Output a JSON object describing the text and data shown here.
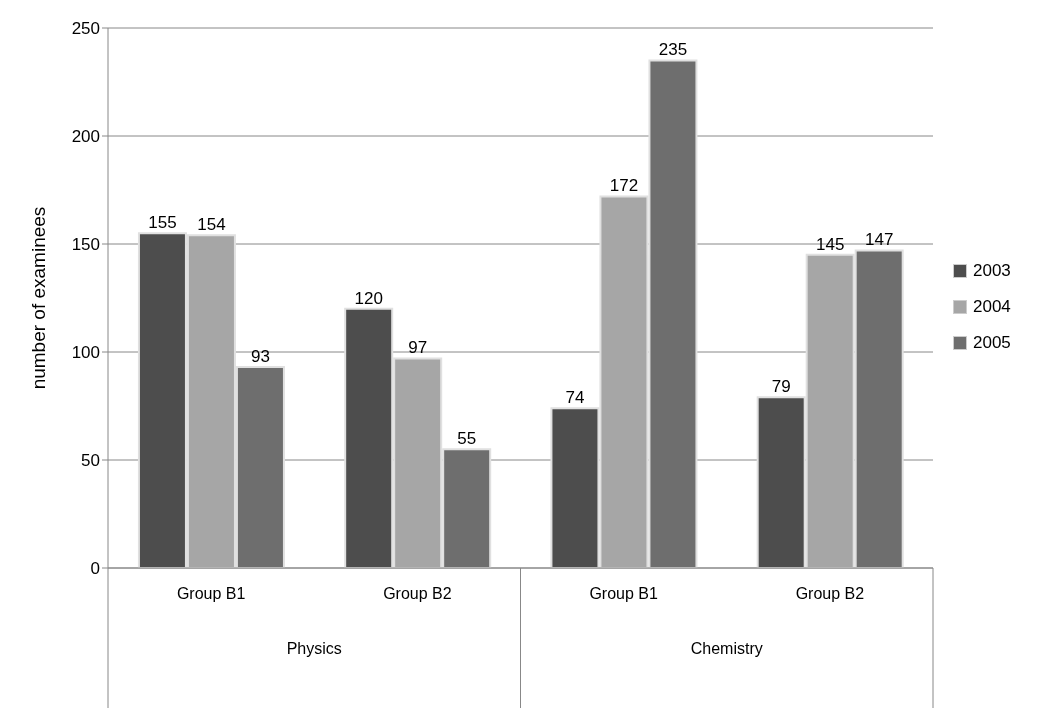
{
  "chart_data": {
    "type": "bar",
    "ylabel": "number of examinees",
    "categories": [
      "Group B1",
      "Group B2",
      "Group B1",
      "Group B2"
    ],
    "series": [
      {
        "name": "2003",
        "color": "#4d4d4d",
        "values": [
          155,
          120,
          74,
          79
        ]
      },
      {
        "name": "2004",
        "color": "#a6a6a6",
        "values": [
          154,
          97,
          172,
          145
        ]
      },
      {
        "name": "2005",
        "color": "#6e6e6e",
        "values": [
          93,
          55,
          235,
          147
        ]
      }
    ],
    "annotations": [
      "Physics",
      "Chemistry"
    ],
    "ylim": [
      0,
      250
    ],
    "yticks": [
      0,
      50,
      100,
      150,
      200,
      250
    ],
    "grid": "y",
    "legend": "right",
    "data_labels": true
  }
}
